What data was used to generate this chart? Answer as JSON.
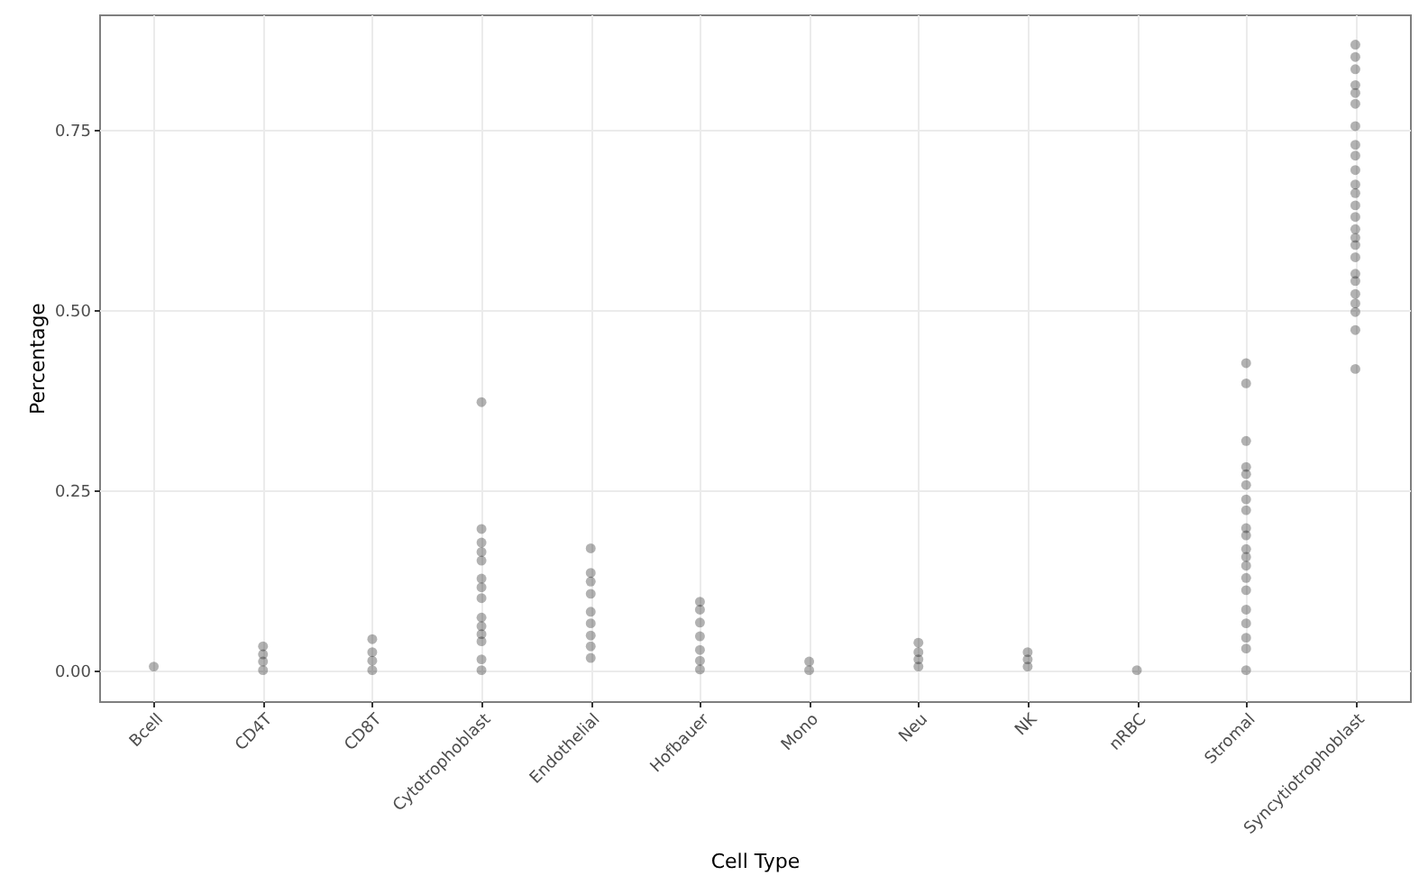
{
  "chart_data": {
    "type": "scatter",
    "xlabel": "Cell Type",
    "ylabel": "Percentage",
    "categories": [
      "Bcell",
      "CD4T",
      "CD8T",
      "Cytotrophoblast",
      "Endothelial",
      "Hofbauer",
      "Mono",
      "Neu",
      "NK",
      "nRBC",
      "Stromal",
      "Syncytiotrophoblast"
    ],
    "ylim": [
      -0.043,
      0.91
    ],
    "yticks": [
      {
        "value": 0,
        "label": "0.00"
      },
      {
        "value": 0.25,
        "label": "0.25"
      },
      {
        "value": 0.5,
        "label": "0.50"
      },
      {
        "value": 0.75,
        "label": "0.75"
      }
    ],
    "grid": true,
    "marker": "circle",
    "series": [
      {
        "color": "#000000",
        "x": [
          "Bcell",
          "CD4T",
          "CD4T",
          "CD4T",
          "CD4T",
          "CD8T",
          "CD8T",
          "CD8T",
          "CD8T",
          "Cytotrophoblast",
          "Cytotrophoblast",
          "Cytotrophoblast",
          "Cytotrophoblast",
          "Cytotrophoblast",
          "Cytotrophoblast",
          "Cytotrophoblast",
          "Cytotrophoblast",
          "Cytotrophoblast",
          "Cytotrophoblast",
          "Cytotrophoblast",
          "Cytotrophoblast",
          "Cytotrophoblast",
          "Cytotrophoblast",
          "Endothelial",
          "Endothelial",
          "Endothelial",
          "Endothelial",
          "Endothelial",
          "Endothelial",
          "Endothelial",
          "Endothelial",
          "Endothelial",
          "Hofbauer",
          "Hofbauer",
          "Hofbauer",
          "Hofbauer",
          "Hofbauer",
          "Hofbauer",
          "Hofbauer",
          "Mono",
          "Mono",
          "Neu",
          "Neu",
          "Neu",
          "Neu",
          "NK",
          "NK",
          "NK",
          "nRBC",
          "Stromal",
          "Stromal",
          "Stromal",
          "Stromal",
          "Stromal",
          "Stromal",
          "Stromal",
          "Stromal",
          "Stromal",
          "Stromal",
          "Stromal",
          "Stromal",
          "Stromal",
          "Stromal",
          "Stromal",
          "Stromal",
          "Stromal",
          "Stromal",
          "Stromal",
          "Stromal",
          "Syncytiotrophoblast",
          "Syncytiotrophoblast",
          "Syncytiotrophoblast",
          "Syncytiotrophoblast",
          "Syncytiotrophoblast",
          "Syncytiotrophoblast",
          "Syncytiotrophoblast",
          "Syncytiotrophoblast",
          "Syncytiotrophoblast",
          "Syncytiotrophoblast",
          "Syncytiotrophoblast",
          "Syncytiotrophoblast",
          "Syncytiotrophoblast",
          "Syncytiotrophoblast",
          "Syncytiotrophoblast",
          "Syncytiotrophoblast",
          "Syncytiotrophoblast",
          "Syncytiotrophoblast",
          "Syncytiotrophoblast",
          "Syncytiotrophoblast",
          "Syncytiotrophoblast",
          "Syncytiotrophoblast",
          "Syncytiotrophoblast",
          "Syncytiotrophoblast",
          "Syncytiotrophoblast"
        ],
        "values": [
          0.005,
          0.0,
          0.012,
          0.022,
          0.033,
          0.0,
          0.013,
          0.025,
          0.043,
          0.372,
          0.196,
          0.177,
          0.164,
          0.152,
          0.127,
          0.115,
          0.1,
          0.073,
          0.061,
          0.05,
          0.04,
          0.015,
          0.0,
          0.169,
          0.135,
          0.123,
          0.106,
          0.081,
          0.065,
          0.048,
          0.033,
          0.017,
          0.095,
          0.084,
          0.066,
          0.047,
          0.028,
          0.013,
          0.001,
          0.0,
          0.012,
          0.005,
          0.015,
          0.025,
          0.038,
          0.005,
          0.015,
          0.025,
          0.0,
          0.426,
          0.398,
          0.318,
          0.282,
          0.272,
          0.257,
          0.237,
          0.222,
          0.197,
          0.187,
          0.168,
          0.157,
          0.145,
          0.128,
          0.111,
          0.084,
          0.065,
          0.045,
          0.03,
          0.0,
          0.868,
          0.851,
          0.834,
          0.812,
          0.801,
          0.786,
          0.755,
          0.729,
          0.714,
          0.694,
          0.674,
          0.662,
          0.645,
          0.629,
          0.612,
          0.6,
          0.59,
          0.573,
          0.55,
          0.54,
          0.522,
          0.509,
          0.497,
          0.472,
          0.418
        ]
      }
    ]
  }
}
